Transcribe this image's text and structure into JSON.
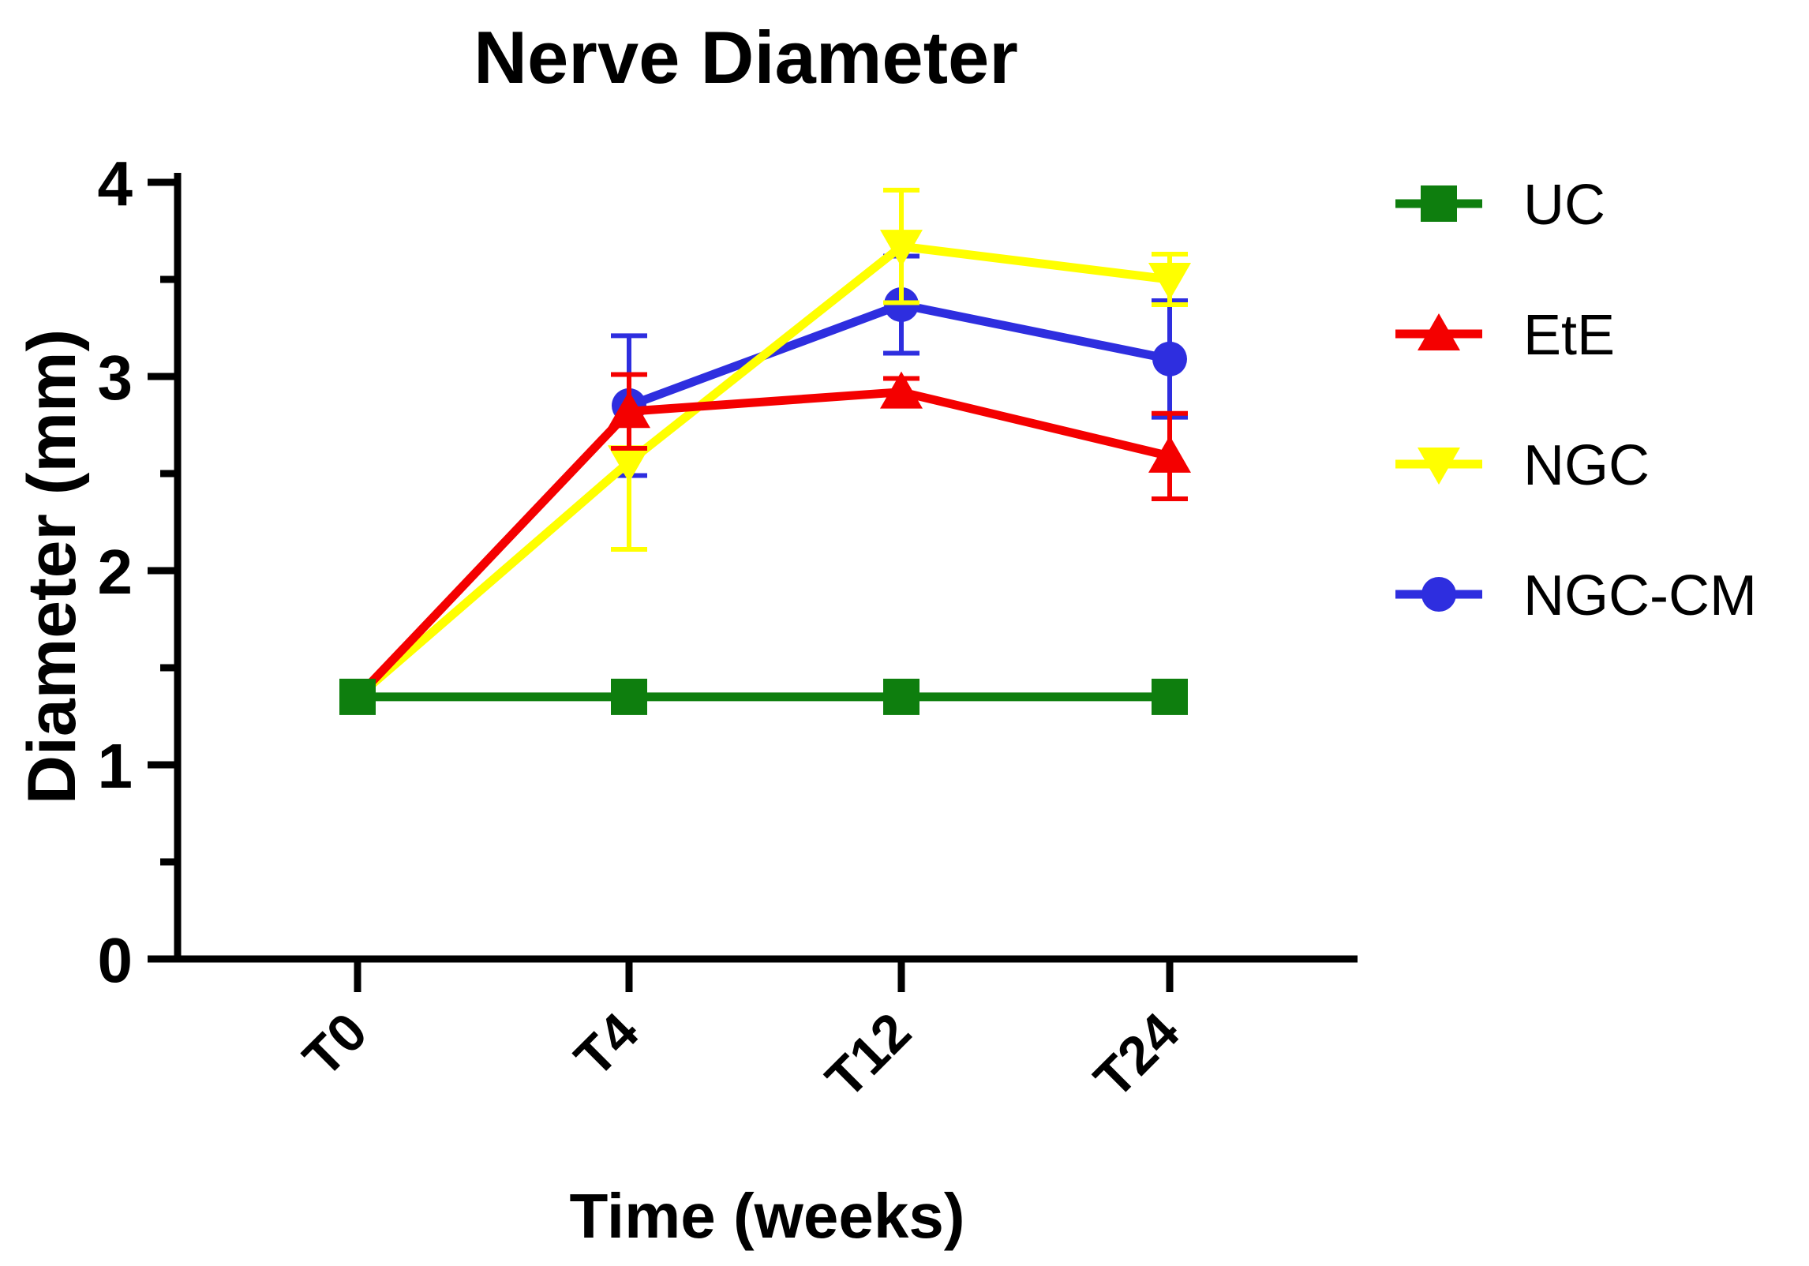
{
  "chart_data": {
    "type": "line",
    "title": "Nerve Diameter",
    "xlabel": "Time (weeks)",
    "ylabel": "Diameter (mm)",
    "categories": [
      "T0",
      "T4",
      "T12",
      "T24"
    ],
    "ylim": [
      0,
      4
    ],
    "yticks": [
      {
        "v": 0,
        "label": "0"
      },
      {
        "v": 1,
        "label": "1"
      },
      {
        "v": 2,
        "label": "2"
      },
      {
        "v": 3,
        "label": "3"
      },
      {
        "v": 4,
        "label": "4"
      }
    ],
    "yticks_minor": [
      0.5,
      1.5,
      2.5,
      3.5
    ],
    "grid": false,
    "legend_position": "right",
    "axis_color": "#000000",
    "series": [
      {
        "name": "UC",
        "color": "#0E7E0E",
        "marker": "square",
        "values": [
          1.35,
          1.35,
          1.35,
          1.35
        ],
        "errors": [
          0,
          0,
          0,
          0
        ],
        "marker_visible": [
          true,
          true,
          true,
          true
        ]
      },
      {
        "name": "EtE",
        "color": "#F40000",
        "marker": "triangle-up",
        "values": [
          1.35,
          2.82,
          2.92,
          2.59
        ],
        "errors": [
          0,
          0.19,
          0.07,
          0.22
        ],
        "marker_visible": [
          false,
          true,
          true,
          true
        ]
      },
      {
        "name": "NGC",
        "color": "#FFFF00",
        "marker": "triangle-down",
        "values": [
          1.35,
          2.56,
          3.67,
          3.5
        ],
        "errors": [
          0,
          0.45,
          0.29,
          0.13
        ],
        "marker_visible": [
          false,
          true,
          true,
          true
        ]
      },
      {
        "name": "NGC-CM",
        "color": "#2E2EDF",
        "marker": "circle",
        "values": [
          null,
          2.85,
          3.37,
          3.09
        ],
        "errors": [
          null,
          0.36,
          0.25,
          0.3
        ],
        "marker_visible": [
          false,
          true,
          true,
          true
        ]
      }
    ],
    "z_order": [
      "NGC-CM",
      "NGC",
      "EtE",
      "UC"
    ]
  }
}
